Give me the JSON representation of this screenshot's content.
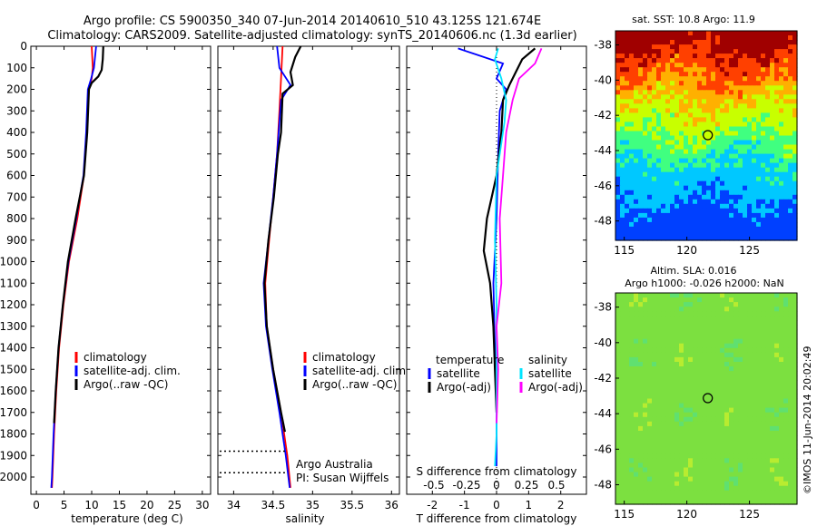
{
  "header": {
    "line1": "Argo profile: CS 5900350_340 07-Jun-2014 20140610_510 43.125S 121.674E",
    "line2": "Climatology: CARS2009. Satellite-adjusted climatology: synTS_20140606.nc (1.3d earlier)"
  },
  "colors": {
    "climatology": "#ff0000",
    "satellite": "#0000ff",
    "argo": "#000000",
    "salinity_satellite": "#00e5ff",
    "salinity_argo": "#ff00ff"
  },
  "chart_data": [
    {
      "type": "line",
      "id": "temperature",
      "xlabel": "temperature (deg C)",
      "ylabel": "",
      "xlim": [
        -1,
        31.5
      ],
      "ylim": [
        2080,
        0
      ],
      "xticks": [
        "0",
        "5",
        "10",
        "15",
        "20",
        "25",
        "30"
      ],
      "xtick_values": [
        0,
        5,
        10,
        15,
        20,
        25,
        30
      ],
      "yticks": [
        "0",
        "100",
        "200",
        "300",
        "400",
        "500",
        "600",
        "700",
        "800",
        "900",
        "1000",
        "1100",
        "1200",
        "1300",
        "1400",
        "1500",
        "1600",
        "1700",
        "1800",
        "1900",
        "2000"
      ],
      "ytick_values": [
        0,
        100,
        200,
        300,
        400,
        500,
        600,
        700,
        800,
        900,
        1000,
        1100,
        1200,
        1300,
        1400,
        1500,
        1600,
        1700,
        1800,
        1900,
        2000
      ],
      "legend": [
        "climatology",
        "satellite-adj. clim.",
        "Argo(..raw -QC)"
      ],
      "series": [
        {
          "name": "climatology",
          "color": "#ff0000",
          "points": [
            [
              10.0,
              0
            ],
            [
              10.2,
              100
            ],
            [
              10.0,
              150
            ],
            [
              9.5,
              200
            ],
            [
              9.1,
              400
            ],
            [
              8.6,
              600
            ],
            [
              7.4,
              800
            ],
            [
              5.9,
              1000
            ],
            [
              4.9,
              1200
            ],
            [
              4.1,
              1400
            ],
            [
              3.6,
              1600
            ],
            [
              3.2,
              1800
            ],
            [
              2.9,
              2000
            ],
            [
              2.8,
              2050
            ]
          ]
        },
        {
          "name": "satellite-adj. clim.",
          "color": "#0000ff",
          "points": [
            [
              10.8,
              0
            ],
            [
              10.4,
              100
            ],
            [
              9.9,
              150
            ],
            [
              9.3,
              200
            ],
            [
              9.0,
              400
            ],
            [
              8.5,
              600
            ],
            [
              7.2,
              800
            ],
            [
              5.8,
              1000
            ],
            [
              4.8,
              1200
            ],
            [
              4.0,
              1400
            ],
            [
              3.5,
              1600
            ],
            [
              3.1,
              1800
            ],
            [
              2.8,
              2000
            ],
            [
              2.7,
              2050
            ]
          ]
        },
        {
          "name": "Argo(..raw -QC)",
          "color": "#000000",
          "points": [
            [
              12.1,
              0
            ],
            [
              12.0,
              60
            ],
            [
              11.8,
              110
            ],
            [
              11.2,
              140
            ],
            [
              10.0,
              170
            ],
            [
              9.5,
              200
            ],
            [
              9.2,
              400
            ],
            [
              8.6,
              600
            ],
            [
              7.1,
              800
            ],
            [
              5.7,
              1000
            ],
            [
              4.8,
              1200
            ],
            [
              4.0,
              1400
            ],
            [
              3.5,
              1600
            ],
            [
              3.2,
              1750
            ]
          ]
        }
      ]
    },
    {
      "type": "line",
      "id": "salinity",
      "xlabel": "salinity",
      "xlim": [
        33.8,
        36.1
      ],
      "ylim": [
        2080,
        0
      ],
      "xticks": [
        "34",
        "34.5",
        "35",
        "35.5",
        "36"
      ],
      "xtick_values": [
        34,
        34.5,
        35,
        35.5,
        36
      ],
      "legend": [
        "climatology",
        "satellite-adj. clim.",
        "Argo(..raw -QC)"
      ],
      "annotations": [
        "Argo Australia",
        "PI: Susan Wijffels"
      ],
      "series": [
        {
          "name": "climatology",
          "color": "#ff0000",
          "points": [
            [
              34.62,
              0
            ],
            [
              34.6,
              150
            ],
            [
              34.58,
              300
            ],
            [
              34.55,
              500
            ],
            [
              34.5,
              700
            ],
            [
              34.45,
              900
            ],
            [
              34.4,
              1100
            ],
            [
              34.42,
              1300
            ],
            [
              34.5,
              1500
            ],
            [
              34.6,
              1700
            ],
            [
              34.68,
              1900
            ],
            [
              34.72,
              2050
            ]
          ]
        },
        {
          "name": "satellite-adj. clim.",
          "color": "#0000ff",
          "points": [
            [
              34.55,
              0
            ],
            [
              34.58,
              100
            ],
            [
              34.72,
              180
            ],
            [
              34.6,
              250
            ],
            [
              34.55,
              500
            ],
            [
              34.5,
              700
            ],
            [
              34.44,
              900
            ],
            [
              34.38,
              1100
            ],
            [
              34.41,
              1300
            ],
            [
              34.49,
              1500
            ],
            [
              34.58,
              1700
            ],
            [
              34.66,
              1900
            ],
            [
              34.71,
              2050
            ]
          ]
        },
        {
          "name": "Argo(..raw -QC)",
          "color": "#000000",
          "points": [
            [
              34.85,
              0
            ],
            [
              34.78,
              50
            ],
            [
              34.72,
              120
            ],
            [
              34.75,
              180
            ],
            [
              34.62,
              220
            ],
            [
              34.6,
              400
            ],
            [
              34.56,
              500
            ],
            [
              34.51,
              700
            ],
            [
              34.44,
              900
            ],
            [
              34.39,
              1100
            ],
            [
              34.42,
              1300
            ],
            [
              34.5,
              1500
            ],
            [
              34.6,
              1700
            ],
            [
              34.65,
              1790
            ]
          ]
        }
      ]
    },
    {
      "type": "line",
      "id": "difference",
      "xlabel": "T difference from climatology",
      "xlabel_top": "S difference from climatology",
      "xlim": [
        -2.8,
        2.8
      ],
      "ylim": [
        2080,
        0
      ],
      "xticks": [
        "-2",
        "-1",
        "0",
        "1",
        "2"
      ],
      "xtick_values": [
        -2,
        -1,
        0,
        1,
        2
      ],
      "top_xticks": [
        "-0.5",
        "-0.25",
        "0",
        "0.25",
        "0.5"
      ],
      "legend": {
        "temperature_header": "temperature",
        "temperature": [
          "satellite",
          "Argo(-adj)"
        ],
        "salinity_header": "salinity",
        "salinity": [
          "satellite",
          "Argo(-adj)"
        ]
      },
      "series": [
        {
          "name": "temperature satellite",
          "color": "#0000ff",
          "points": [
            [
              -1.2,
              10
            ],
            [
              -0.6,
              40
            ],
            [
              0.2,
              80
            ],
            [
              0.0,
              150
            ],
            [
              0.3,
              200
            ],
            [
              0.1,
              300
            ],
            [
              0.05,
              500
            ],
            [
              0.0,
              800
            ],
            [
              -0.1,
              1100
            ],
            [
              -0.05,
              1400
            ],
            [
              0.0,
              1700
            ],
            [
              0.0,
              1950
            ]
          ]
        },
        {
          "name": "temperature Argo(-adj)",
          "color": "#000000",
          "points": [
            [
              1.2,
              10
            ],
            [
              0.8,
              60
            ],
            [
              0.6,
              120
            ],
            [
              0.4,
              180
            ],
            [
              0.2,
              250
            ],
            [
              0.15,
              400
            ],
            [
              0.0,
              600
            ],
            [
              -0.3,
              800
            ],
            [
              -0.4,
              950
            ],
            [
              -0.2,
              1100
            ],
            [
              -0.1,
              1300
            ],
            [
              -0.05,
              1500
            ],
            [
              0.0,
              1700
            ]
          ]
        },
        {
          "name": "salinity satellite",
          "color": "#00e5ff",
          "points": [
            [
              0.05,
              10
            ],
            [
              -0.05,
              60
            ],
            [
              0.15,
              150
            ],
            [
              0.3,
              250
            ],
            [
              0.25,
              350
            ],
            [
              0.0,
              600
            ],
            [
              -0.05,
              900
            ],
            [
              0.0,
              1200
            ],
            [
              0.0,
              1500
            ],
            [
              0.0,
              1800
            ],
            [
              -0.05,
              1950
            ]
          ]
        },
        {
          "name": "salinity Argo(-adj)",
          "color": "#ff00ff",
          "points": [
            [
              1.4,
              10
            ],
            [
              1.2,
              80
            ],
            [
              0.7,
              150
            ],
            [
              0.5,
              250
            ],
            [
              0.3,
              400
            ],
            [
              0.2,
              600
            ],
            [
              0.1,
              800
            ],
            [
              0.15,
              1100
            ],
            [
              0.0,
              1300
            ],
            [
              0.05,
              1500
            ],
            [
              0.0,
              1750
            ]
          ]
        }
      ]
    },
    {
      "type": "heatmap",
      "id": "sst-map",
      "title": "sat. SST: 10.8  Argo: 11.9",
      "xticks": [
        "115",
        "120",
        "125"
      ],
      "xtick_values": [
        115,
        120,
        125
      ],
      "yticks": [
        "-38",
        "-40",
        "-42",
        "-44",
        "-46",
        "-48"
      ],
      "ytick_values": [
        -38,
        -40,
        -42,
        -44,
        -46,
        -48
      ],
      "xlim": [
        114.3,
        128.8
      ],
      "ylim": [
        -49.1,
        -37.2
      ],
      "marker": {
        "lon": 121.674,
        "lat": -43.125
      }
    },
    {
      "type": "heatmap",
      "id": "sla-map",
      "title_line1": "Altim. SLA: 0.016",
      "title_line2": "Argo h1000: -0.026 h2000: NaN",
      "xticks": [
        "115",
        "120",
        "125"
      ],
      "xtick_values": [
        115,
        120,
        125
      ],
      "yticks": [
        "-38",
        "-40",
        "-42",
        "-44",
        "-46",
        "-48"
      ],
      "ytick_values": [
        -38,
        -40,
        -42,
        -44,
        -46,
        -48
      ],
      "xlim": [
        114.3,
        128.8
      ],
      "ylim": [
        -49.1,
        -37.2
      ],
      "marker": {
        "lon": 121.674,
        "lat": -43.125
      },
      "side_label": "©IMOS 11-Jun-2014 20:02:49"
    }
  ]
}
